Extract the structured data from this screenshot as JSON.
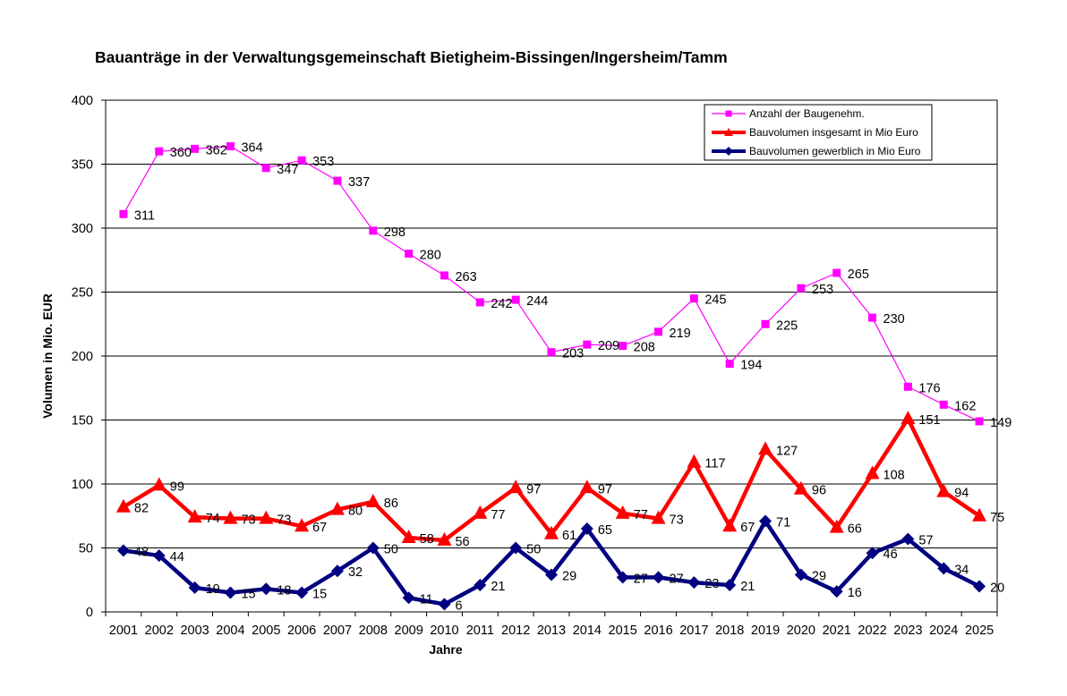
{
  "chart_data": {
    "type": "line",
    "title": "Bauanträge in der Verwaltungsgemeinschaft Bietigheim-Bissingen/Ingersheim/Tamm",
    "xlabel": "Jahre",
    "ylabel": "Volumen in Mio. EUR",
    "ylim": [
      0,
      400
    ],
    "yticks": [
      "0",
      "50",
      "100",
      "150",
      "200",
      "250",
      "300",
      "350",
      "400"
    ],
    "grid": true,
    "legend_position": "top-right",
    "categories": [
      "2001",
      "2002",
      "2003",
      "2004",
      "2005",
      "2006",
      "2007",
      "2008",
      "2009",
      "2010",
      "2011",
      "2012",
      "2013",
      "2014",
      "2015",
      "2016",
      "2017",
      "2018",
      "2019",
      "2020",
      "2021",
      "2022",
      "2023",
      "2024",
      "2025"
    ],
    "series": [
      {
        "name": "Anzahl der Baugenehm.",
        "color": "#ff00ff",
        "marker": "square",
        "values": [
          311,
          360,
          362,
          364,
          347,
          353,
          337,
          298,
          280,
          263,
          242,
          244,
          203,
          209,
          208,
          219,
          245,
          194,
          225,
          253,
          265,
          230,
          176,
          162,
          149
        ]
      },
      {
        "name": "Bauvolumen insgesamt in Mio Euro",
        "color": "#ff0000",
        "marker": "triangle",
        "values": [
          82,
          99,
          74,
          73,
          73,
          67,
          80,
          86,
          58,
          56,
          77,
          97,
          61,
          97,
          77,
          73,
          117,
          67,
          127,
          96,
          66,
          108,
          151,
          94,
          75
        ]
      },
      {
        "name": "Bauvolumen gewerblich in Mio Euro",
        "color": "#000080",
        "marker": "diamond",
        "values": [
          48,
          44,
          19,
          15,
          18,
          15,
          32,
          50,
          11,
          6,
          21,
          50,
          29,
          65,
          27,
          27,
          23,
          21,
          71,
          29,
          16,
          46,
          57,
          34,
          20
        ]
      }
    ]
  }
}
